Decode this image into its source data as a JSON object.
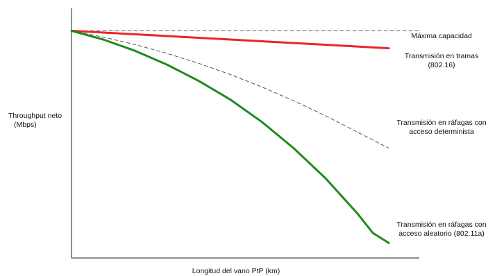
{
  "chart_data": {
    "type": "line",
    "title": "",
    "xlabel": "Longitud del vano PtP (km)",
    "ylabel_lines": [
      "Throughput neto",
      "(Mbps)"
    ],
    "x_ticks": [],
    "y_ticks": [],
    "grid": false,
    "legend": "none",
    "notes": "Qualitative chart; curves shown in relative units (x: 0-1 distance, y: 0-1 throughput).",
    "xlim": [
      0,
      1
    ],
    "ylim": [
      0,
      1
    ],
    "series": [
      {
        "name": "Máxima capacidad",
        "label_lines": [
          "Máxima capacidad"
        ],
        "color": "#555555",
        "style": "dashed",
        "x": [
          0,
          1
        ],
        "y": [
          0.91,
          0.91
        ]
      },
      {
        "name": "Transmisión en tramas (802.16)",
        "label_lines": [
          "Transmisión en tramas",
          "(802.16)"
        ],
        "color": "#e8262a",
        "style": "solid",
        "x": [
          0,
          1
        ],
        "y": [
          0.91,
          0.84
        ]
      },
      {
        "name": "Transmisión en ráfagas con acceso determinista",
        "label_lines": [
          "Transmisión en ráfagas con",
          "acceso determinista"
        ],
        "color": "#555555",
        "style": "dashed",
        "x": [
          0,
          0.1,
          0.2,
          0.3,
          0.4,
          0.5,
          0.6,
          0.7,
          0.8,
          0.9,
          1.0
        ],
        "y": [
          0.91,
          0.885,
          0.855,
          0.82,
          0.78,
          0.735,
          0.685,
          0.63,
          0.57,
          0.505,
          0.44
        ]
      },
      {
        "name": "Transmisión en ráfagas con acceso aleatorio (802.11a)",
        "label_lines": [
          "Transmisión en ráfagas con",
          "acceso aleatorio (802.11a)"
        ],
        "color": "#1f8a1f",
        "style": "solid",
        "x": [
          0,
          0.1,
          0.2,
          0.3,
          0.4,
          0.5,
          0.6,
          0.7,
          0.8,
          0.9,
          0.95,
          1.0
        ],
        "y": [
          0.91,
          0.875,
          0.83,
          0.775,
          0.71,
          0.635,
          0.545,
          0.44,
          0.32,
          0.18,
          0.1,
          0.06
        ]
      }
    ]
  }
}
